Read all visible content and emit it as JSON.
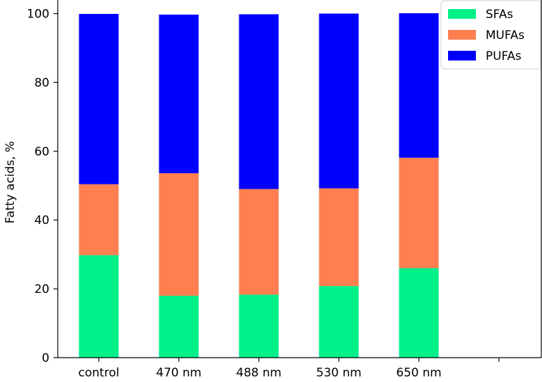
{
  "chart_data": {
    "type": "bar",
    "stacked": true,
    "title": "",
    "xlabel": "",
    "ylabel": "Fatty acids, %",
    "ylim": [
      0,
      100
    ],
    "yticks": [
      0,
      20,
      40,
      60,
      80,
      100
    ],
    "categories": [
      "control",
      "470 nm",
      "488 nm",
      "530 nm",
      "650 nm"
    ],
    "series": [
      {
        "name": "SFAs",
        "color": "#00f08a",
        "values": [
          29.8,
          18.0,
          18.3,
          20.8,
          26.0
        ]
      },
      {
        "name": "MUFAs",
        "color": "#ff7f50",
        "values": [
          20.6,
          35.6,
          30.7,
          28.4,
          32.1
        ]
      },
      {
        "name": "PUFAs",
        "color": "#0000ff",
        "values": [
          49.5,
          46.1,
          50.8,
          50.8,
          42.0
        ]
      }
    ],
    "legend_position": "top-right"
  }
}
